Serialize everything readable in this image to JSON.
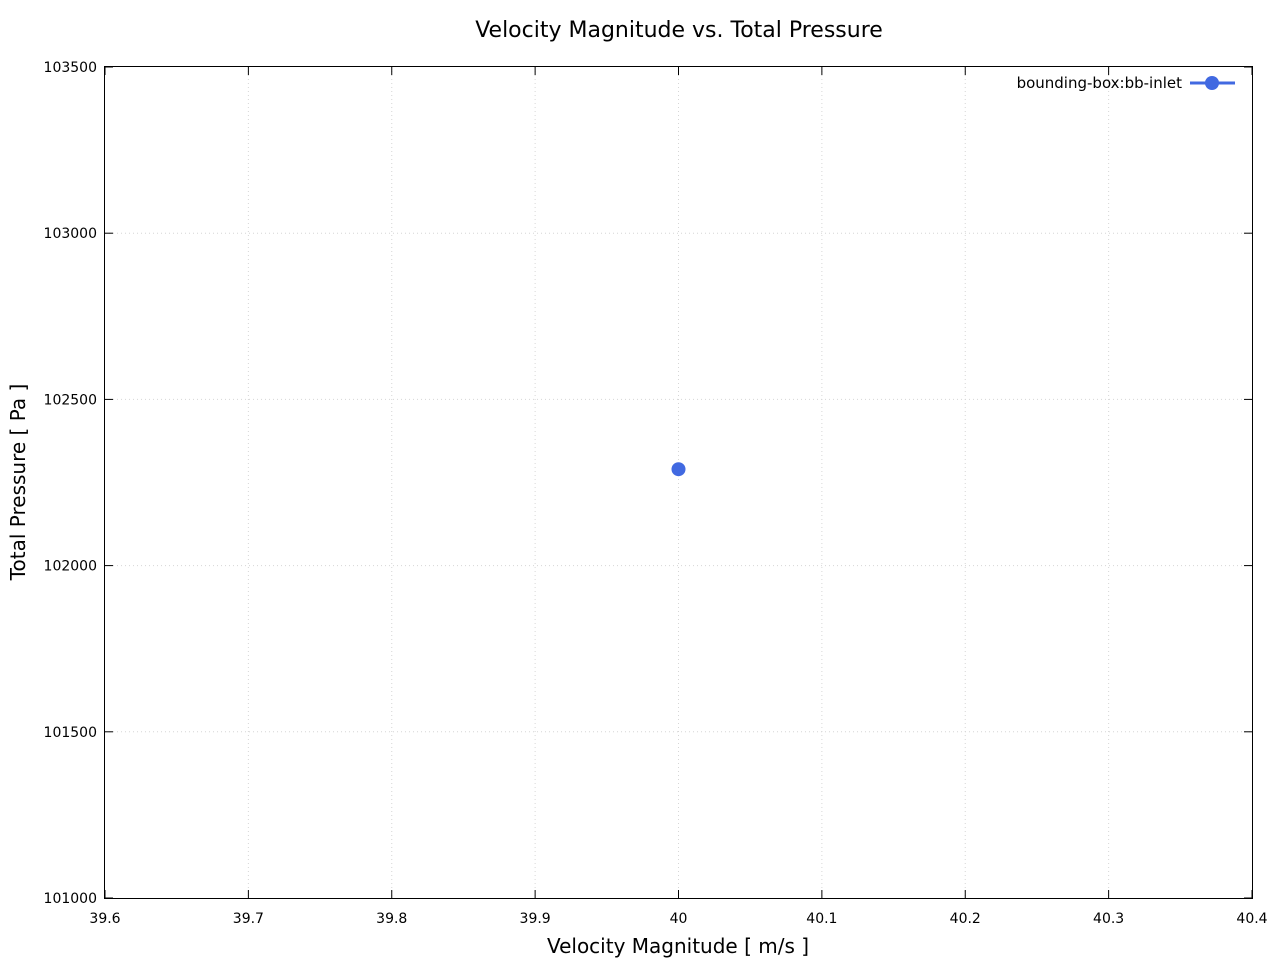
{
  "chart_data": {
    "type": "scatter",
    "title": "Velocity Magnitude vs. Total Pressure",
    "xlabel": "Velocity Magnitude [ m/s ]",
    "ylabel": "Total Pressure [ Pa ]",
    "xlim": [
      39.6,
      40.4
    ],
    "ylim": [
      101000,
      103500
    ],
    "x_ticks": [
      "39.6",
      "39.7",
      "39.8",
      "39.9",
      "40",
      "40.1",
      "40.2",
      "40.3",
      "40.4"
    ],
    "y_ticks": [
      "101000",
      "101500",
      "102000",
      "102500",
      "103000",
      "103500"
    ],
    "grid": true,
    "legend_position": "top-right",
    "series": [
      {
        "name": "bounding-box:bb-inlet",
        "color": "#4169e1",
        "points": [
          {
            "x": 40.0,
            "y": 102290
          }
        ]
      }
    ]
  }
}
